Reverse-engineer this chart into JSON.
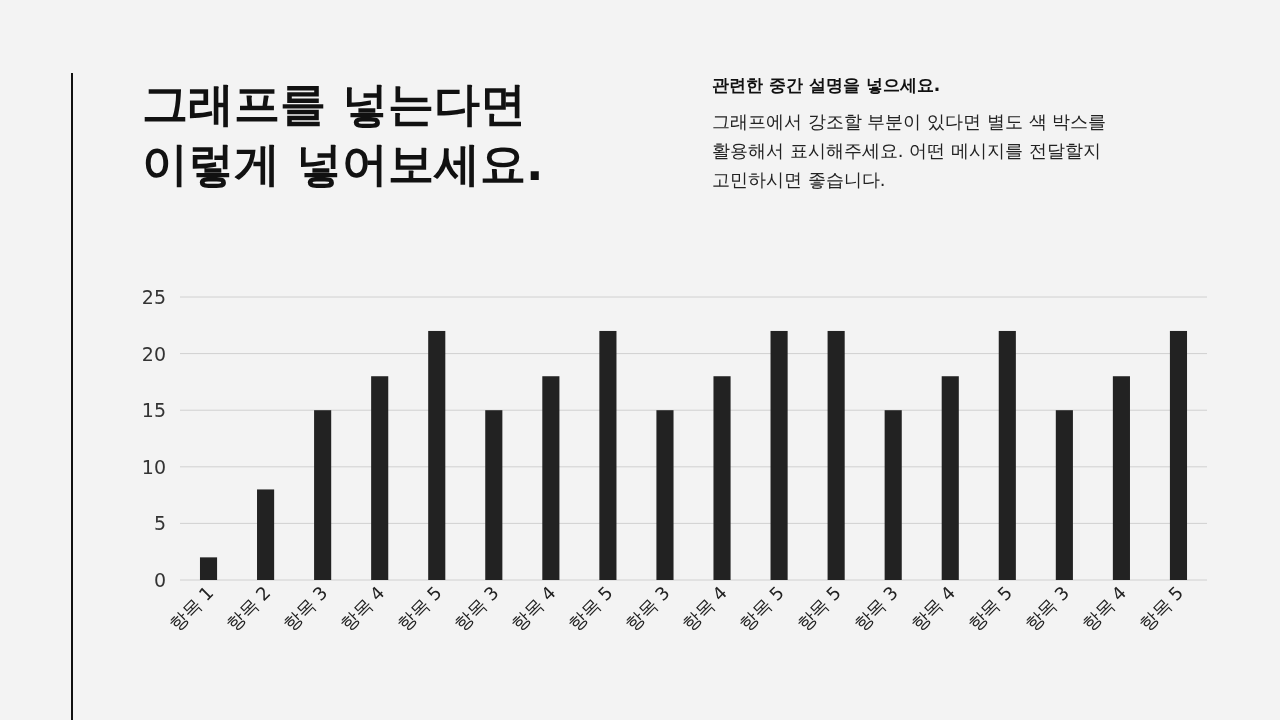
{
  "chart_data": {
    "type": "bar",
    "title": "그래프를 넣는다면\n이렇게 넣어보세요.",
    "subtitle": "관련한 중간 설명을 넣으세요.",
    "annotations": [
      "그래프에서 강조할 부분이 있다면 별도 색 박스를\n활용해서 표시해주세요. 어떤 메시지를 전달할지\n고민하시면 좋습니다."
    ],
    "categories": [
      "항목 1",
      "항목 2",
      "항목 3",
      "항목 4",
      "항목 5",
      "항목 3",
      "항목 4",
      "항목 5",
      "항목 3",
      "항목 4",
      "항목 5",
      "항목 5",
      "항목 3",
      "항목 4",
      "항목 5",
      "항목 3",
      "항목 4",
      "항목 5"
    ],
    "values": [
      2,
      8,
      15,
      18,
      22,
      15,
      18,
      22,
      15,
      18,
      22,
      22,
      15,
      18,
      22,
      15,
      18,
      22
    ],
    "color": "#222222",
    "ylim": [
      0,
      25
    ],
    "yticks": [
      0,
      5,
      10,
      15,
      20,
      25
    ],
    "grid": "y"
  }
}
